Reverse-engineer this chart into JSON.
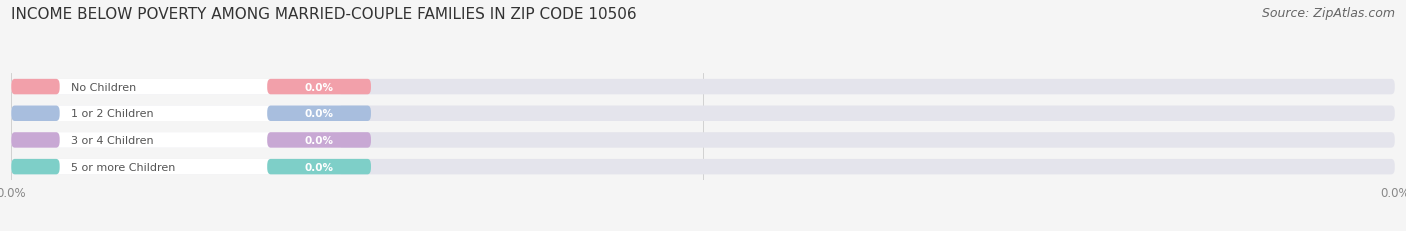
{
  "title": "INCOME BELOW POVERTY AMONG MARRIED-COUPLE FAMILIES IN ZIP CODE 10506",
  "source": "Source: ZipAtlas.com",
  "categories": [
    "No Children",
    "1 or 2 Children",
    "3 or 4 Children",
    "5 or more Children"
  ],
  "values": [
    0.0,
    0.0,
    0.0,
    0.0
  ],
  "bar_colors": [
    "#f2a0aa",
    "#a8bede",
    "#c8a8d4",
    "#7ecfc8"
  ],
  "bar_background": "#e4e4ec",
  "background_color": "#f5f5f5",
  "title_fontsize": 11,
  "source_fontsize": 9,
  "label_text_color": "#555555",
  "value_text_color": "#ffffff",
  "tick_color": "#888888",
  "grid_color": "#cccccc"
}
